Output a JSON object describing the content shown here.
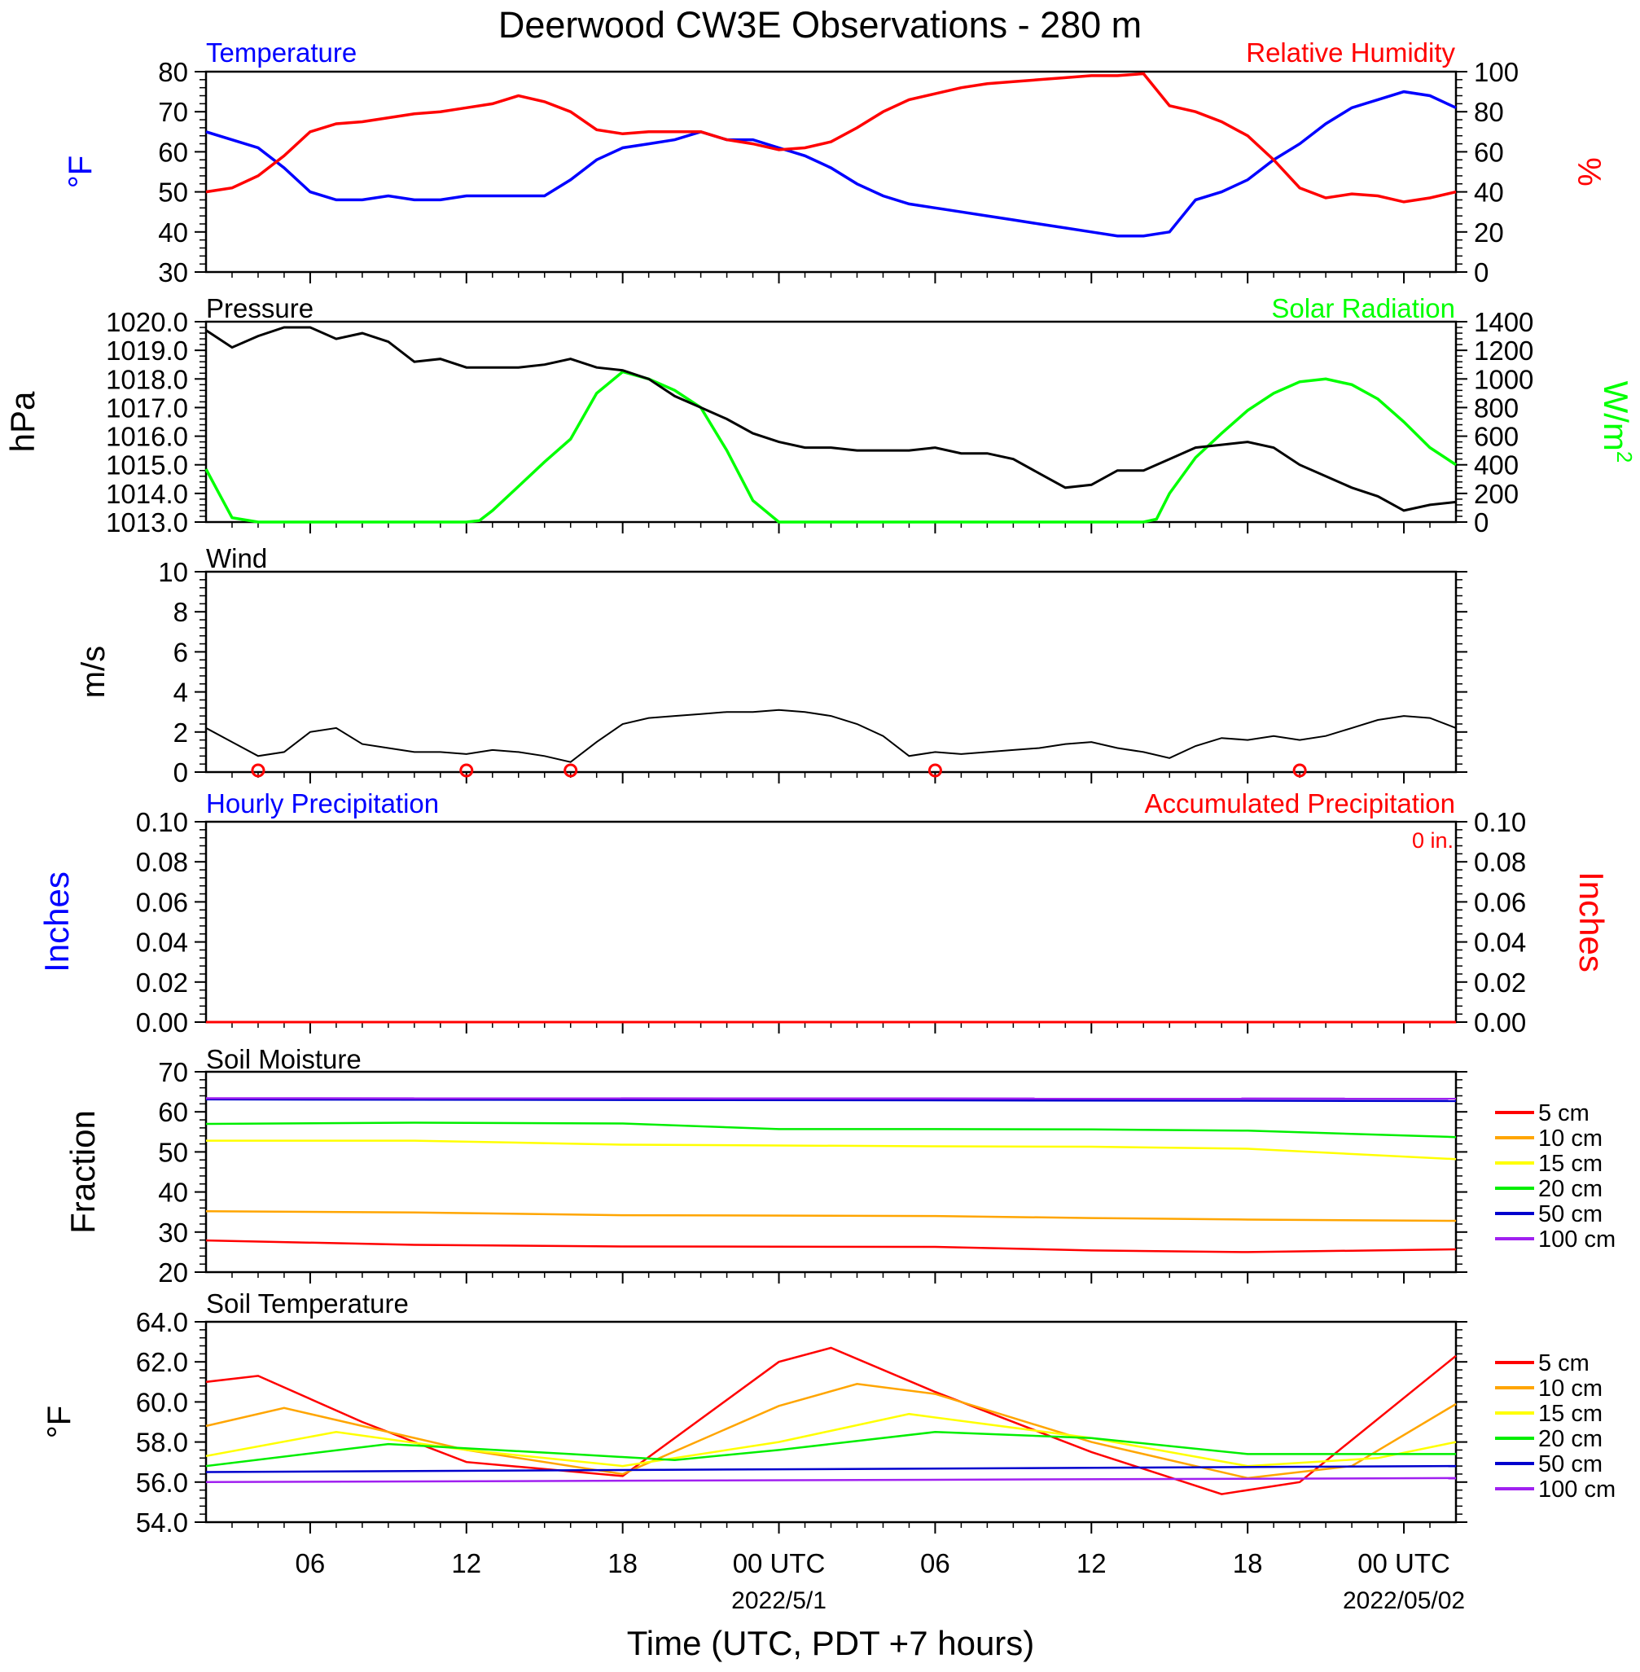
{
  "title": "Deerwood CW3E Observations - 280 m",
  "colors": {
    "temperature": "#0000ff",
    "humidity": "#ff0000",
    "pressure": "#000000",
    "solar": "#00ff00",
    "wind_speed": "#000000",
    "wind_barb": "#ff0000",
    "precip_accum": "#ff0000",
    "depth_5cm": "#ff0000",
    "depth_10cm": "#ffa500",
    "depth_15cm": "#ffff00",
    "depth_20cm": "#00ee00",
    "depth_50cm": "#0000cd",
    "depth_100cm": "#a020f0"
  },
  "x_axis": {
    "label": "Time (UTC, PDT +7 hours)",
    "range_hours": [
      -22,
      26
    ],
    "ticks": [
      {
        "hour": -18,
        "label": "06",
        "date": ""
      },
      {
        "hour": -12,
        "label": "12",
        "date": ""
      },
      {
        "hour": -6,
        "label": "18",
        "date": ""
      },
      {
        "hour": 0,
        "label": "00 UTC",
        "date": "2022/5/1"
      },
      {
        "hour": 6,
        "label": "06",
        "date": ""
      },
      {
        "hour": 12,
        "label": "12",
        "date": ""
      },
      {
        "hour": 18,
        "label": "18",
        "date": ""
      },
      {
        "hour": 24,
        "label": "00 UTC",
        "date": "2022/05/02"
      }
    ]
  },
  "panels": {
    "temp_rh": {
      "left_title": "Temperature",
      "right_title": "Relative Humidity",
      "left_unit": "°F",
      "right_unit": "%",
      "left_ticks": [
        "30",
        "40",
        "50",
        "60",
        "70",
        "80"
      ],
      "right_ticks": [
        "0",
        "20",
        "40",
        "60",
        "80",
        "100"
      ]
    },
    "pressure_solar": {
      "left_title": "Pressure",
      "right_title": "Solar Radiation",
      "left_unit": "hPa",
      "right_unit": "W/m",
      "right_unit_sup": "2",
      "left_ticks": [
        "1013.0",
        "1014.0",
        "1015.0",
        "1016.0",
        "1017.0",
        "1018.0",
        "1019.0",
        "1020.0"
      ],
      "right_ticks": [
        "0",
        "200",
        "400",
        "600",
        "800",
        "1000",
        "1200",
        "1400"
      ]
    },
    "wind": {
      "left_title": "Wind",
      "left_unit": "m/s",
      "left_ticks": [
        "0",
        "2",
        "4",
        "6",
        "8",
        "10"
      ]
    },
    "precip": {
      "left_title": "Hourly Precipitation",
      "right_title": "Accumulated Precipitation",
      "total_label": "0 in.",
      "left_unit": "Inches",
      "right_unit": "Inches",
      "left_ticks": [
        "0.00",
        "0.02",
        "0.04",
        "0.06",
        "0.08",
        "0.10"
      ],
      "right_ticks": [
        "0.00",
        "0.02",
        "0.04",
        "0.06",
        "0.08",
        "0.10"
      ]
    },
    "soil_moisture": {
      "left_title": "Soil Moisture",
      "left_unit": "Fraction",
      "left_ticks": [
        "20",
        "30",
        "40",
        "50",
        "60",
        "70"
      ]
    },
    "soil_temp": {
      "left_title": "Soil Temperature",
      "left_unit": "°F",
      "left_ticks": [
        "54.0",
        "56.0",
        "58.0",
        "60.0",
        "62.0",
        "64.0"
      ]
    }
  },
  "legend_labels": [
    "5 cm",
    "10 cm",
    "15 cm",
    "20 cm",
    "50 cm",
    "100 cm"
  ],
  "chart_data": [
    {
      "type": "line",
      "title": "Temperature / Relative Humidity",
      "x_unit": "hours from 2022-05-01 00 UTC",
      "xlim": [
        -22,
        26
      ],
      "series": [
        {
          "name": "Temperature",
          "axis": "left",
          "unit": "°F",
          "ylim": [
            30,
            80
          ],
          "x": [
            -22,
            -20,
            -19,
            -18,
            -17,
            -16,
            -15,
            -14,
            -13,
            -12,
            -11,
            -10,
            -9,
            -8,
            -7,
            -6,
            -5,
            -4,
            -3,
            -2,
            -1,
            0,
            1,
            2,
            3,
            4,
            5,
            6,
            7,
            8,
            9,
            10,
            11,
            12,
            13,
            14,
            15,
            16,
            17,
            18,
            19,
            20,
            21,
            22,
            23,
            24,
            25,
            26
          ],
          "y": [
            65,
            61,
            56,
            50,
            48,
            48,
            49,
            48,
            48,
            49,
            49,
            49,
            49,
            53,
            58,
            61,
            62,
            63,
            65,
            63,
            63,
            61,
            59,
            56,
            52,
            49,
            47,
            46,
            45,
            44,
            43,
            42,
            41,
            40,
            39,
            39,
            40,
            48,
            50,
            53,
            58,
            62,
            67,
            71,
            73,
            75,
            74,
            71
          ]
        },
        {
          "name": "Relative Humidity",
          "axis": "right",
          "unit": "%",
          "ylim": [
            0,
            100
          ],
          "x": [
            -22,
            -21,
            -20,
            -19,
            -18,
            -17,
            -16,
            -15,
            -14,
            -13,
            -12,
            -11,
            -10,
            -9,
            -8,
            -7,
            -6,
            -5,
            -4,
            -3,
            -2,
            -1,
            0,
            1,
            2,
            3,
            4,
            5,
            6,
            7,
            8,
            9,
            10,
            11,
            12,
            13,
            14,
            15,
            16,
            17,
            18,
            19,
            20,
            21,
            22,
            23,
            24,
            25,
            26
          ],
          "y": [
            40,
            42,
            48,
            58,
            70,
            74,
            75,
            77,
            79,
            80,
            82,
            84,
            88,
            85,
            80,
            71,
            69,
            70,
            70,
            70,
            66,
            64,
            61,
            62,
            65,
            72,
            80,
            86,
            89,
            92,
            94,
            95,
            96,
            97,
            98,
            98,
            99,
            83,
            80,
            75,
            68,
            56,
            42,
            37,
            39,
            38,
            35,
            37,
            40
          ]
        }
      ]
    },
    {
      "type": "line",
      "title": "Pressure / Solar Radiation",
      "x_unit": "hours from 2022-05-01 00 UTC",
      "xlim": [
        -22,
        26
      ],
      "series": [
        {
          "name": "Pressure",
          "axis": "left",
          "unit": "hPa",
          "ylim": [
            1013,
            1020
          ],
          "x": [
            -22,
            -21,
            -20,
            -19,
            -18,
            -17,
            -16,
            -15,
            -14,
            -13,
            -12,
            -11,
            -10,
            -9,
            -8,
            -7,
            -6,
            -5,
            -4,
            -3,
            -2,
            -1,
            0,
            1,
            2,
            3,
            4,
            5,
            6,
            7,
            8,
            9,
            10,
            11,
            12,
            13,
            14,
            15,
            16,
            17,
            18,
            19,
            20,
            21,
            22,
            23,
            24,
            25,
            26
          ],
          "y": [
            1019.7,
            1019.1,
            1019.5,
            1019.8,
            1019.8,
            1019.4,
            1019.6,
            1019.3,
            1018.6,
            1018.7,
            1018.4,
            1018.4,
            1018.4,
            1018.5,
            1018.7,
            1018.4,
            1018.3,
            1018.0,
            1017.4,
            1017.0,
            1016.6,
            1016.1,
            1015.8,
            1015.6,
            1015.6,
            1015.5,
            1015.5,
            1015.5,
            1015.6,
            1015.4,
            1015.4,
            1015.2,
            1014.7,
            1014.2,
            1014.3,
            1014.8,
            1014.8,
            1015.2,
            1015.6,
            1015.7,
            1015.8,
            1015.6,
            1015.0,
            1014.6,
            1014.2,
            1013.9,
            1013.4,
            1013.6,
            1013.7
          ]
        },
        {
          "name": "Solar Radiation",
          "axis": "right",
          "unit": "W/m2",
          "ylim": [
            0,
            1400
          ],
          "x": [
            -22,
            -21.5,
            -21,
            -20,
            -19,
            -18,
            -17,
            -16,
            -15,
            -14,
            -13,
            -12,
            -11.5,
            -11,
            -10,
            -9,
            -8,
            -7,
            -6,
            -5,
            -4,
            -3,
            -2,
            -1,
            0,
            1,
            2,
            3,
            4,
            5,
            6,
            7,
            8,
            9,
            10,
            11,
            12,
            13,
            14,
            14.5,
            15,
            16,
            17,
            18,
            19,
            20,
            21,
            22,
            23,
            24,
            25,
            26
          ],
          "y": [
            370,
            200,
            30,
            0,
            0,
            0,
            0,
            0,
            0,
            0,
            0,
            0,
            10,
            80,
            250,
            420,
            580,
            900,
            1050,
            1000,
            920,
            800,
            500,
            150,
            0,
            0,
            0,
            0,
            0,
            0,
            0,
            0,
            0,
            0,
            0,
            0,
            0,
            0,
            0,
            20,
            200,
            450,
            620,
            780,
            900,
            980,
            1000,
            960,
            860,
            700,
            520,
            400
          ]
        }
      ]
    },
    {
      "type": "line",
      "title": "Wind",
      "x_unit": "hours from 2022-05-01 00 UTC",
      "xlim": [
        -22,
        26
      ],
      "ylim": [
        0,
        10
      ],
      "series": [
        {
          "name": "Wind",
          "unit": "m/s",
          "x": [
            -22,
            -21,
            -20,
            -19,
            -18,
            -17,
            -16,
            -15,
            -14,
            -13,
            -12,
            -11,
            -10,
            -9,
            -8,
            -7,
            -6,
            -5,
            -4,
            -3,
            -2,
            -1,
            0,
            1,
            2,
            3,
            4,
            5,
            6,
            7,
            8,
            9,
            10,
            11,
            12,
            13,
            14,
            15,
            16,
            17,
            18,
            19,
            20,
            21,
            22,
            23,
            24,
            25,
            26
          ],
          "y": [
            2.2,
            1.5,
            0.8,
            1.0,
            2.0,
            2.2,
            1.4,
            1.2,
            1.0,
            1.0,
            0.9,
            1.1,
            1.0,
            0.8,
            0.5,
            1.5,
            2.4,
            2.7,
            2.8,
            2.9,
            3.0,
            3.0,
            3.1,
            3.0,
            2.8,
            2.4,
            1.8,
            0.8,
            1.0,
            0.9,
            1.0,
            1.1,
            1.2,
            1.4,
            1.5,
            1.2,
            1.0,
            0.7,
            1.3,
            1.7,
            1.6,
            1.8,
            1.6,
            1.8,
            2.2,
            2.6,
            2.8,
            2.7,
            2.2
          ]
        }
      ],
      "calm_marks_hours": [
        -20,
        -12,
        -8,
        6,
        20
      ]
    },
    {
      "type": "line",
      "title": "Precipitation",
      "x_unit": "hours from 2022-05-01 00 UTC",
      "xlim": [
        -22,
        26
      ],
      "ylim": [
        0,
        0.1
      ],
      "series": [
        {
          "name": "Hourly Precipitation",
          "unit": "in",
          "x": [
            -22,
            26
          ],
          "y": [
            0,
            0
          ]
        },
        {
          "name": "Accumulated Precipitation",
          "unit": "in",
          "x": [
            -22,
            26
          ],
          "y": [
            0,
            0
          ]
        }
      ]
    },
    {
      "type": "line",
      "title": "Soil Moisture",
      "x_unit": "hours from 2022-05-01 00 UTC",
      "xlim": [
        -22,
        26
      ],
      "ylim": [
        20,
        70
      ],
      "series": [
        {
          "name": "5 cm",
          "x": [
            -22,
            -14,
            -6,
            6,
            12,
            18,
            26
          ],
          "y": [
            27.9,
            26.8,
            26.4,
            26.3,
            25.4,
            25.0,
            25.7
          ]
        },
        {
          "name": "10 cm",
          "x": [
            -22,
            -14,
            -6,
            6,
            12,
            18,
            26
          ],
          "y": [
            35.2,
            34.9,
            34.2,
            34.0,
            33.5,
            33.1,
            32.8
          ]
        },
        {
          "name": "15 cm",
          "x": [
            -22,
            -14,
            -6,
            6,
            12,
            18,
            26
          ],
          "y": [
            52.8,
            52.8,
            51.8,
            51.4,
            51.3,
            50.8,
            48.2
          ]
        },
        {
          "name": "20 cm",
          "x": [
            -22,
            -14,
            -6,
            0,
            6,
            12,
            18,
            26
          ],
          "y": [
            57.0,
            57.3,
            57.1,
            55.7,
            55.7,
            55.6,
            55.3,
            53.7
          ]
        },
        {
          "name": "50 cm",
          "x": [
            -22,
            26
          ],
          "y": [
            63.1,
            62.7
          ]
        },
        {
          "name": "100 cm",
          "x": [
            -22,
            26
          ],
          "y": [
            63.4,
            63.3
          ]
        }
      ]
    },
    {
      "type": "line",
      "title": "Soil Temperature",
      "x_unit": "hours from 2022-05-01 00 UTC",
      "xlim": [
        -22,
        26
      ],
      "ylim": [
        54,
        64
      ],
      "series": [
        {
          "name": "5 cm",
          "x": [
            -22,
            -20,
            -16,
            -12,
            -6,
            0,
            2,
            6,
            12,
            17,
            20,
            26
          ],
          "y": [
            61.0,
            61.3,
            59.0,
            57.0,
            56.3,
            62.0,
            62.7,
            60.5,
            57.5,
            55.4,
            56.0,
            62.3
          ]
        },
        {
          "name": "10 cm",
          "x": [
            -22,
            -19,
            -12,
            -6,
            0,
            3,
            6,
            12,
            18,
            22,
            26
          ],
          "y": [
            58.8,
            59.7,
            57.6,
            56.4,
            59.8,
            60.9,
            60.4,
            58.0,
            56.2,
            56.8,
            59.9
          ]
        },
        {
          "name": "15 cm",
          "x": [
            -22,
            -17,
            -12,
            -6,
            0,
            5,
            12,
            18,
            23,
            26
          ],
          "y": [
            57.3,
            58.5,
            57.6,
            56.8,
            58.0,
            59.4,
            58.2,
            56.8,
            57.2,
            58.0
          ]
        },
        {
          "name": "20 cm",
          "x": [
            -22,
            -15,
            -8,
            -4,
            0,
            6,
            12,
            18,
            26
          ],
          "y": [
            56.8,
            57.9,
            57.4,
            57.1,
            57.6,
            58.5,
            58.2,
            57.4,
            57.4
          ]
        },
        {
          "name": "50 cm",
          "x": [
            -22,
            26
          ],
          "y": [
            56.5,
            56.8
          ]
        },
        {
          "name": "100 cm",
          "x": [
            -22,
            26
          ],
          "y": [
            56.0,
            56.2
          ]
        }
      ]
    }
  ]
}
